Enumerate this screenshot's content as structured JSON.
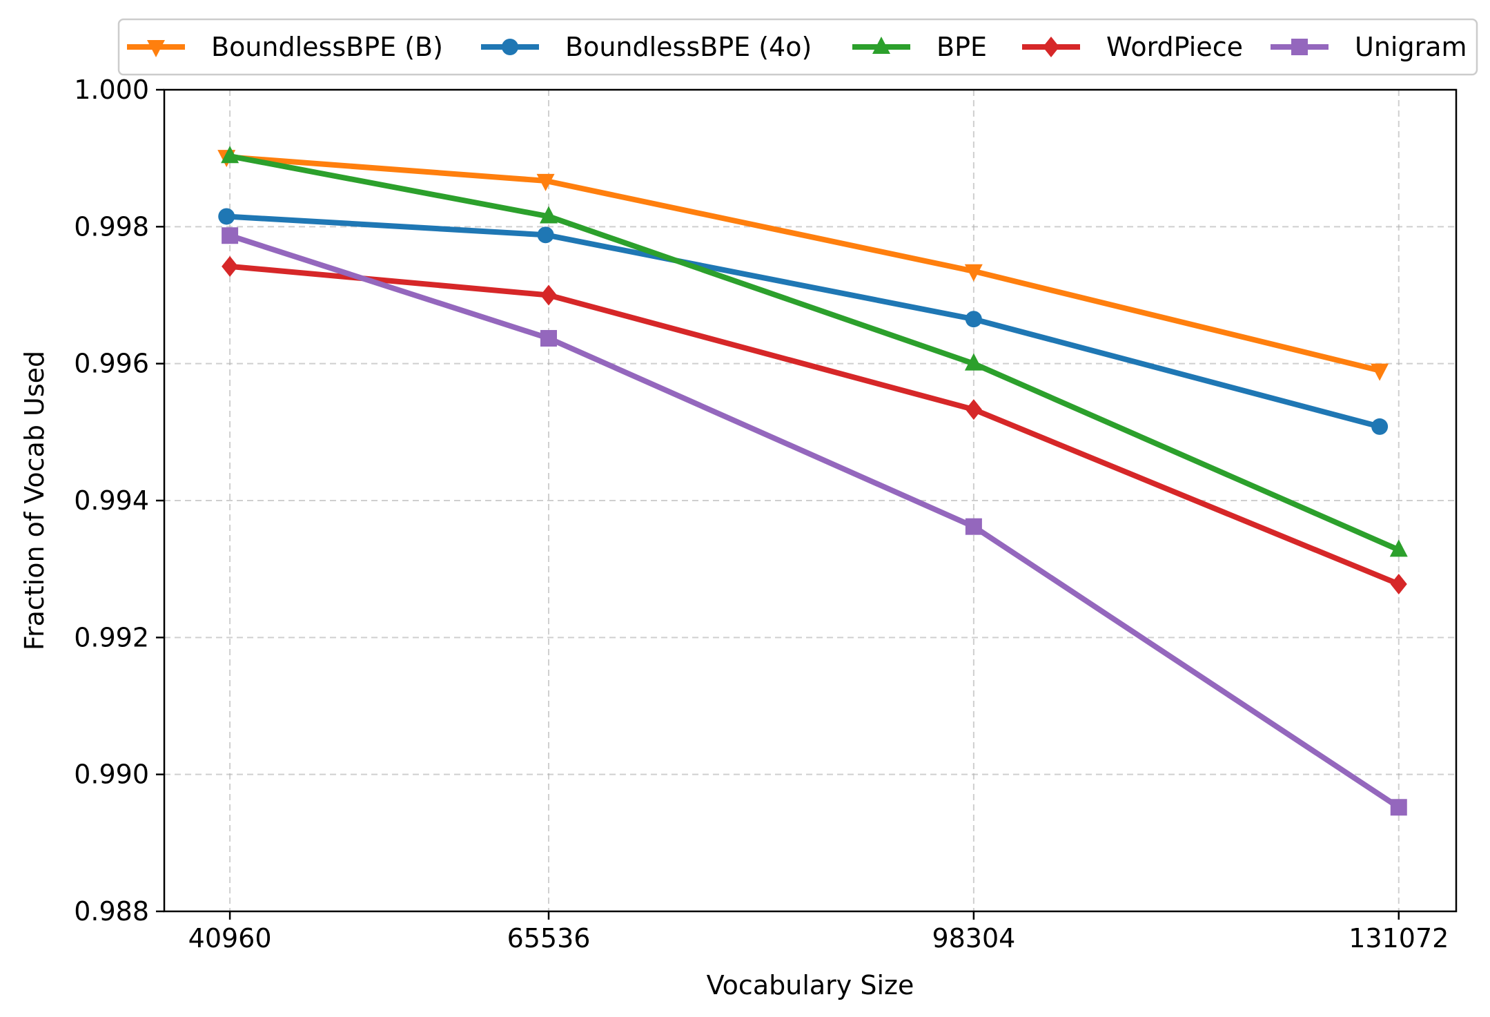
{
  "chart_data": {
    "type": "line",
    "title": "",
    "xlabel": "Vocabulary Size",
    "ylabel": "Fraction of Vocab Used",
    "categories": [
      "40960",
      "65536",
      "98304",
      "131072"
    ],
    "x": [
      40960,
      65536,
      98304,
      131072
    ],
    "xlim": [
      35900,
      135500
    ],
    "ylim": [
      0.988,
      1.0
    ],
    "yticks": [
      0.988,
      0.99,
      0.992,
      0.994,
      0.996,
      0.998,
      1.0
    ],
    "ytick_labels": [
      "0.988",
      "0.990",
      "0.992",
      "0.994",
      "0.996",
      "0.998",
      "1.000"
    ],
    "grid": true,
    "legend_position": "top-center",
    "series": [
      {
        "name": "BoundlessBPE (B)",
        "color": "#ff7f0e",
        "marker": "triangle-down",
        "x": [
          40700,
          65300,
          98300,
          129600
        ],
        "values": [
          0.99902,
          0.99867,
          0.99735,
          0.9959
        ]
      },
      {
        "name": "BoundlessBPE (4o)",
        "color": "#1f77b4",
        "marker": "circle",
        "x": [
          40700,
          65300,
          98300,
          129600
        ],
        "values": [
          0.99815,
          0.99788,
          0.99665,
          0.99508
        ]
      },
      {
        "name": "BPE",
        "color": "#2ca02c",
        "marker": "triangle-up",
        "x": [
          40960,
          65536,
          98304,
          131072
        ],
        "values": [
          0.99903,
          0.99815,
          0.996,
          0.99328
        ]
      },
      {
        "name": "WordPiece",
        "color": "#d62728",
        "marker": "diamond",
        "x": [
          40960,
          65536,
          98304,
          131072
        ],
        "values": [
          0.99742,
          0.997,
          0.99533,
          0.99278
        ]
      },
      {
        "name": "Unigram",
        "color": "#9467bd",
        "marker": "square",
        "x": [
          40960,
          65536,
          98304,
          131072
        ],
        "values": [
          0.99787,
          0.99637,
          0.99362,
          0.98952
        ]
      }
    ]
  }
}
